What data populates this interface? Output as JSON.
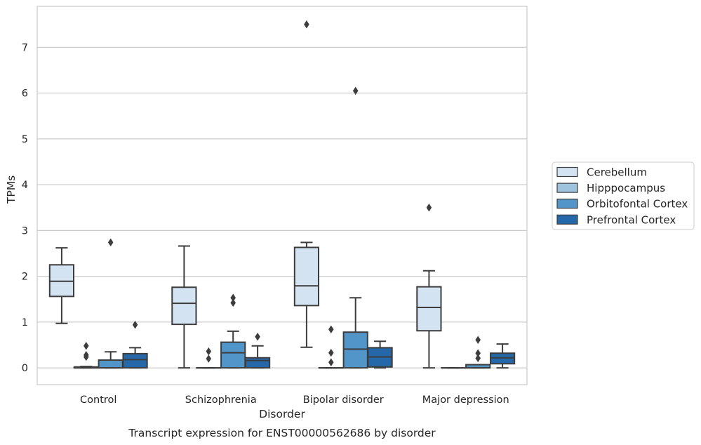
{
  "chart_data": {
    "type": "boxplot",
    "title": "Transcript expression for ENST00000562686 by disorder",
    "xlabel": "Disorder",
    "ylabel": "TPMs",
    "categories": [
      "Control",
      "Schizophrenia",
      "Bipolar disorder",
      "Major depression"
    ],
    "ylim": [
      -0.35,
      7.9
    ],
    "yticks": [
      "0",
      "1",
      "2",
      "3",
      "4",
      "5",
      "6",
      "7"
    ],
    "grid": "horizontal",
    "legend_position": "right",
    "series": [
      {
        "name": "Cerebellum",
        "color": "#d4e3f2",
        "boxes": [
          {
            "whislo": 0.97,
            "q1": 1.56,
            "med": 1.89,
            "q3": 2.25,
            "whishi": 2.62,
            "fliers": []
          },
          {
            "whislo": 0.0,
            "q1": 0.95,
            "med": 1.41,
            "q3": 1.76,
            "whishi": 2.66,
            "fliers": []
          },
          {
            "whislo": 0.45,
            "q1": 1.36,
            "med": 1.79,
            "q3": 2.63,
            "whishi": 2.74,
            "fliers": [
              7.5
            ]
          },
          {
            "whislo": 0.0,
            "q1": 0.81,
            "med": 1.32,
            "q3": 1.77,
            "whishi": 2.12,
            "fliers": [
              3.5
            ]
          }
        ]
      },
      {
        "name": "Hipppocampus",
        "color": "#9dc3de",
        "boxes": [
          {
            "whislo": 0.0,
            "q1": 0.0,
            "med": 0.0,
            "q3": 0.02,
            "whishi": 0.03,
            "fliers": [
              0.48,
              0.28,
              0.24
            ]
          },
          {
            "whislo": 0.0,
            "q1": 0.0,
            "med": 0.0,
            "q3": 0.0,
            "whishi": 0.0,
            "fliers": [
              0.36,
              0.2
            ]
          },
          {
            "whislo": 0.0,
            "q1": 0.0,
            "med": 0.0,
            "q3": 0.0,
            "whishi": 0.0,
            "fliers": [
              0.84,
              0.33,
              0.12
            ]
          },
          {
            "whislo": 0.0,
            "q1": 0.0,
            "med": 0.0,
            "q3": 0.0,
            "whishi": 0.0,
            "fliers": []
          }
        ]
      },
      {
        "name": "Orbitofontal Cortex",
        "color": "#5295c8",
        "boxes": [
          {
            "whislo": 0.0,
            "q1": 0.0,
            "med": 0.0,
            "q3": 0.17,
            "whishi": 0.35,
            "fliers": [
              2.74
            ]
          },
          {
            "whislo": 0.0,
            "q1": 0.0,
            "med": 0.33,
            "q3": 0.56,
            "whishi": 0.8,
            "fliers": [
              1.53,
              1.42
            ]
          },
          {
            "whislo": 0.0,
            "q1": 0.0,
            "med": 0.41,
            "q3": 0.78,
            "whishi": 1.53,
            "fliers": [
              6.05
            ]
          },
          {
            "whislo": 0.0,
            "q1": 0.0,
            "med": 0.0,
            "q3": 0.07,
            "whishi": 0.07,
            "fliers": [
              0.61,
              0.32,
              0.21
            ]
          }
        ]
      },
      {
        "name": "Prefrontal Cortex",
        "color": "#2468a9",
        "boxes": [
          {
            "whislo": 0.0,
            "q1": 0.0,
            "med": 0.18,
            "q3": 0.31,
            "whishi": 0.44,
            "fliers": [
              0.94
            ]
          },
          {
            "whislo": 0.0,
            "q1": 0.0,
            "med": 0.16,
            "q3": 0.22,
            "whishi": 0.48,
            "fliers": [
              0.68
            ]
          },
          {
            "whislo": 0.0,
            "q1": 0.02,
            "med": 0.24,
            "q3": 0.44,
            "whishi": 0.58,
            "fliers": []
          },
          {
            "whislo": 0.0,
            "q1": 0.09,
            "med": 0.22,
            "q3": 0.32,
            "whishi": 0.52,
            "fliers": []
          }
        ]
      }
    ]
  }
}
